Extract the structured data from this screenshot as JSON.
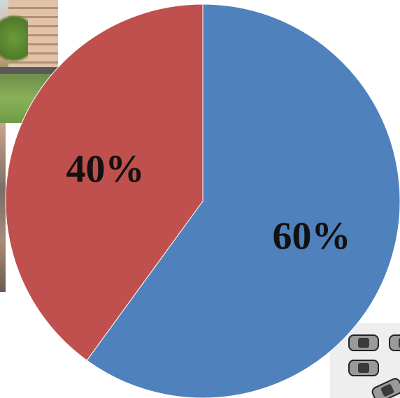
{
  "chart_data": {
    "type": "pie",
    "categories": [
      "",
      ""
    ],
    "values": [
      60,
      40
    ],
    "labels": [
      "60%",
      "40%"
    ],
    "colors": [
      "#4f81bd",
      "#c0504d"
    ],
    "start_angle_deg": 0,
    "direction": "clockwise",
    "title": "",
    "legend": "none"
  }
}
